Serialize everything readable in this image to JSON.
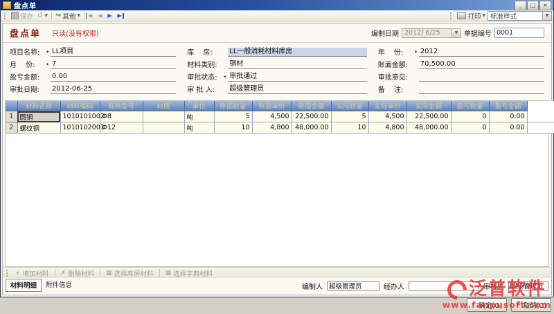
{
  "window": {
    "title": "盘点单",
    "controls": {
      "minimize": "_",
      "restore": "□",
      "close": "×"
    }
  },
  "icons": {
    "dropdown": "▼",
    "undo": "↺",
    "other_arrow": "↪",
    "nav_first": "◀",
    "nav_prev": "◀",
    "nav_next": "▶",
    "nav_last": "▶",
    "ok_check": "✓",
    "cancel_cross": "✗"
  },
  "toolbar": {
    "save_label": "保存",
    "other_label": "其他",
    "print_label": "打印",
    "style_value": "标准样式"
  },
  "doc_header": {
    "title": "盘点单",
    "readonly_note": "只读(没有权限)",
    "compile_date_label": "编制日期",
    "compile_date_value": "2012/ 6/25",
    "doc_no_label": "单据编号",
    "doc_no_value": "0001"
  },
  "form": {
    "fields": [
      {
        "label": "项目名称:",
        "required": true,
        "value": "LL项目",
        "highlight": false
      },
      {
        "label": "库　 房:",
        "required": false,
        "value": "LL一般消耗材料库房",
        "highlight": true
      },
      {
        "label": "年　 份:",
        "required": true,
        "value": "2012",
        "highlight": false
      },
      {
        "label": "月　 份:",
        "required": true,
        "value": "7",
        "highlight": false
      },
      {
        "label": "材料类别:",
        "required": false,
        "value": "钢材",
        "highlight": false
      },
      {
        "label": "账面金额:",
        "required": false,
        "value": "70,500.00",
        "highlight": false
      },
      {
        "label": "盈亏金额:",
        "required": false,
        "value": "0.00",
        "highlight": false
      },
      {
        "label": "审批状态:",
        "required": true,
        "value": "审批通过",
        "highlight": false
      },
      {
        "label": "审批意见:",
        "required": false,
        "value": "",
        "highlight": false
      },
      {
        "label": "审批日期:",
        "required": false,
        "value": "2012-06-25",
        "highlight": false
      },
      {
        "label": "审 批 人:",
        "required": false,
        "value": "超级管理员",
        "highlight": false
      },
      {
        "label": "备　 注:",
        "required": false,
        "value": "",
        "highlight": false
      }
    ]
  },
  "table": {
    "columns": [
      {
        "label": "",
        "width": 17,
        "align": "c"
      },
      {
        "label": "材料名称",
        "width": 62,
        "align": "l"
      },
      {
        "label": "材料编码",
        "width": 57,
        "align": "l"
      },
      {
        "label": "规格型号",
        "width": 62,
        "align": "l"
      },
      {
        "label": "材质",
        "width": 60,
        "align": "l"
      },
      {
        "label": "单位",
        "width": 43,
        "align": "l"
      },
      {
        "label": "账面数量",
        "width": 55,
        "align": "r"
      },
      {
        "label": "账面单价",
        "width": 57,
        "align": "r"
      },
      {
        "label": "账面金额",
        "width": 57,
        "align": "r"
      },
      {
        "label": "实际数量",
        "width": 54,
        "align": "r"
      },
      {
        "label": "实际单价",
        "width": 55,
        "align": "r"
      },
      {
        "label": "实际金额",
        "width": 64,
        "align": "r"
      },
      {
        "label": "盈亏数量",
        "width": 55,
        "align": "r"
      },
      {
        "label": "盈亏金额",
        "width": 55,
        "align": "r"
      }
    ],
    "selected_cell": {
      "row": 0,
      "col": 0
    },
    "rows": [
      {
        "num": "1",
        "cells": [
          "圆钢",
          "1010101002",
          "Φ8",
          "",
          "吨",
          "5",
          "4,500",
          "22,500.00",
          "5",
          "4,500",
          "22,500.00",
          "0",
          "0.00"
        ]
      },
      {
        "num": "2",
        "cells": [
          "螺纹钢",
          "1010102001",
          "Φ12",
          "",
          "吨",
          "10",
          "4,800",
          "48,000.00",
          "10",
          "4,800",
          "48,000.00",
          "0",
          "0.00"
        ]
      }
    ]
  },
  "bottom_toolbar": {
    "buttons": [
      {
        "name": "add-material-button",
        "glyph": "+",
        "label": "增加材料"
      },
      {
        "name": "delete-material-button",
        "glyph": "✗",
        "label": "删除材料"
      },
      {
        "name": "select-warehouse-material-button",
        "glyph": "▦",
        "label": "选择库房材料"
      },
      {
        "name": "select-dictionary-material-button",
        "glyph": "▦",
        "label": "选择字典材料"
      }
    ]
  },
  "tabs": [
    {
      "label": "材料明细",
      "active": true
    },
    {
      "label": "附件信息",
      "active": false
    }
  ],
  "footer": {
    "fields": [
      {
        "label": "编制人",
        "value": "超级管理员",
        "w": 76
      },
      {
        "label": "经办人",
        "value": "",
        "w": 102
      },
      {
        "label": "审核人",
        "value": "超级管理员",
        "w": 58
      }
    ]
  },
  "dialog_buttons": {
    "ok": "确定(O)",
    "cancel": "取消(C)"
  },
  "watermark": {
    "brand": "泛普软件",
    "url": "www.fanpusoft.com"
  },
  "colors": {
    "titlebar_navy": "#0b2569",
    "header_maroon": "#8b1a1a",
    "readonly_red": "#cc2222",
    "grid_header_blue": "#5e82ba",
    "grid_header_text": "#dcc98e",
    "row_yellow": "#fdfce9",
    "watermark_red": "#e03838",
    "highlight_blue": "#c8d6e8"
  }
}
